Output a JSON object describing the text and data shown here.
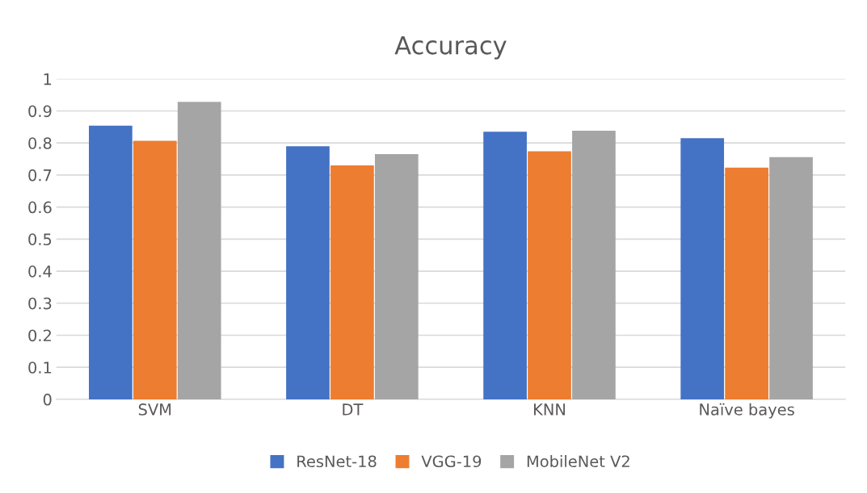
{
  "chart_data": {
    "type": "bar",
    "title": "Accuracy",
    "categories": [
      "SVM",
      "DT",
      "KNN",
      "Naïve bayes"
    ],
    "series": [
      {
        "name": "ResNet-18",
        "color": "#4472c4",
        "values": [
          0.854,
          0.79,
          0.835,
          0.815
        ]
      },
      {
        "name": "VGG-19",
        "color": "#ed7d31",
        "values": [
          0.807,
          0.73,
          0.774,
          0.723
        ]
      },
      {
        "name": "MobileNet V2",
        "color": "#a5a5a5",
        "values": [
          0.928,
          0.765,
          0.838,
          0.756
        ]
      }
    ],
    "ylim": [
      0,
      1
    ],
    "yticks": [
      0,
      0.1,
      0.2,
      0.3,
      0.4,
      0.5,
      0.6,
      0.7,
      0.8,
      0.9,
      1
    ],
    "grid": "y",
    "legend": "bottom"
  }
}
